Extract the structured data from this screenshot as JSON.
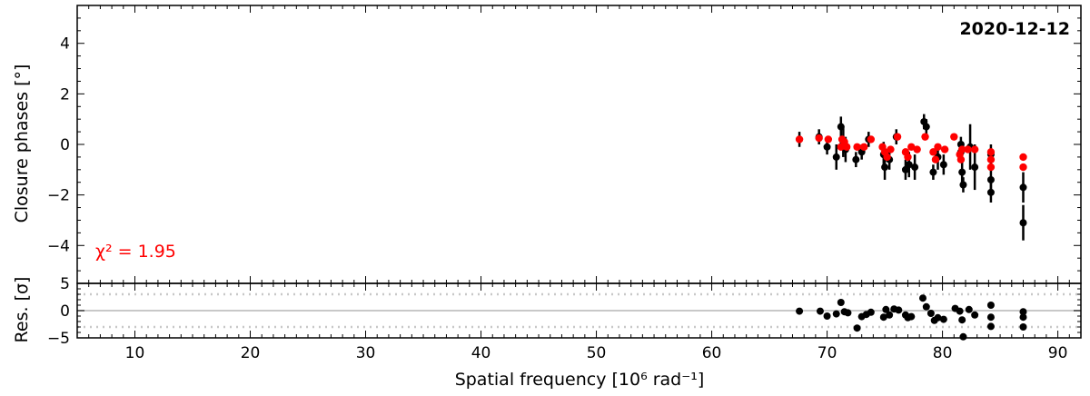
{
  "chart_data": [
    {
      "type": "scatter",
      "panel": "closure-phases",
      "date_label": "2020-12-12",
      "ylabel": "Closure phases [°]",
      "xlim": [
        5,
        92
      ],
      "ylim": [
        -5.5,
        5.5
      ],
      "yticks": [
        -4,
        -2,
        0,
        2,
        4
      ],
      "annotation": "χ² = 1.95",
      "observed": {
        "color": "#000000",
        "points": [
          [
            67.6,
            0.2,
            0.3
          ],
          [
            69.3,
            0.3,
            0.3
          ],
          [
            70.0,
            -0.1,
            0.3
          ],
          [
            70.8,
            -0.5,
            0.5
          ],
          [
            71.2,
            0.7,
            0.4
          ],
          [
            71.4,
            0.1,
            0.6
          ],
          [
            71.6,
            -0.2,
            0.5
          ],
          [
            72.5,
            -0.6,
            0.3
          ],
          [
            73.0,
            -0.3,
            0.3
          ],
          [
            73.6,
            0.2,
            0.3
          ],
          [
            74.9,
            -0.4,
            0.5
          ],
          [
            75.0,
            -0.9,
            0.5
          ],
          [
            75.4,
            -0.6,
            0.4
          ],
          [
            76.0,
            0.3,
            0.3
          ],
          [
            76.8,
            -1.0,
            0.4
          ],
          [
            77.1,
            -0.8,
            0.5
          ],
          [
            77.6,
            -0.9,
            0.5
          ],
          [
            78.4,
            0.9,
            0.3
          ],
          [
            78.6,
            0.7,
            0.3
          ],
          [
            79.2,
            -1.1,
            0.3
          ],
          [
            79.6,
            -0.5,
            0.5
          ],
          [
            80.1,
            -0.8,
            0.4
          ],
          [
            81.6,
            0.0,
            0.3
          ],
          [
            81.6,
            -0.3,
            0.4
          ],
          [
            81.7,
            -1.1,
            0.4
          ],
          [
            81.8,
            -1.6,
            0.3
          ],
          [
            82.4,
            -0.1,
            0.9
          ],
          [
            82.8,
            -0.9,
            0.9
          ],
          [
            84.2,
            -0.4,
            0.4
          ],
          [
            84.2,
            -1.4,
            0.4
          ],
          [
            84.2,
            -1.9,
            0.4
          ],
          [
            87.0,
            -1.7,
            0.6
          ],
          [
            87.0,
            -3.1,
            0.7
          ]
        ]
      },
      "model": {
        "color": "#ff0000",
        "points": [
          [
            67.6,
            0.2
          ],
          [
            69.3,
            0.25
          ],
          [
            70.1,
            0.2
          ],
          [
            71.2,
            -0.1
          ],
          [
            71.3,
            0.2
          ],
          [
            71.5,
            0.1
          ],
          [
            71.7,
            -0.1
          ],
          [
            72.6,
            -0.1
          ],
          [
            73.2,
            -0.1
          ],
          [
            73.8,
            0.2
          ],
          [
            74.8,
            -0.1
          ],
          [
            75.0,
            -0.3
          ],
          [
            75.2,
            -0.5
          ],
          [
            75.5,
            -0.2
          ],
          [
            76.1,
            0.3
          ],
          [
            76.8,
            -0.3
          ],
          [
            77.0,
            -0.5
          ],
          [
            77.3,
            -0.1
          ],
          [
            77.8,
            -0.2
          ],
          [
            78.5,
            0.3
          ],
          [
            79.2,
            -0.3
          ],
          [
            79.4,
            -0.6
          ],
          [
            79.6,
            -0.1
          ],
          [
            80.2,
            -0.2
          ],
          [
            81.0,
            0.3
          ],
          [
            81.5,
            -0.4
          ],
          [
            81.6,
            -0.6
          ],
          [
            81.7,
            -0.2
          ],
          [
            82.2,
            -0.2
          ],
          [
            82.8,
            -0.2
          ],
          [
            84.2,
            -0.3
          ],
          [
            84.2,
            -0.6
          ],
          [
            84.2,
            -0.9
          ],
          [
            87.0,
            -0.5
          ],
          [
            87.0,
            -0.9
          ]
        ]
      }
    },
    {
      "type": "scatter",
      "panel": "residuals",
      "xlabel": "Spatial frequency [10⁶ rad⁻¹]",
      "ylabel": "Res. [σ]",
      "xlim": [
        5,
        92
      ],
      "ylim": [
        -5,
        5
      ],
      "yticks": [
        -5,
        0,
        5
      ],
      "xticks": [
        10,
        20,
        30,
        40,
        50,
        60,
        70,
        80,
        90
      ],
      "reference_lines": {
        "solid": 0,
        "dotted": [
          -3,
          3
        ]
      },
      "points": [
        [
          67.6,
          -0.1
        ],
        [
          69.4,
          -0.1
        ],
        [
          70.0,
          -1.0
        ],
        [
          70.8,
          -0.6
        ],
        [
          71.2,
          1.5
        ],
        [
          71.5,
          -0.2
        ],
        [
          71.8,
          -0.4
        ],
        [
          72.6,
          -3.2
        ],
        [
          73.0,
          -1.1
        ],
        [
          73.4,
          -0.7
        ],
        [
          73.8,
          -0.3
        ],
        [
          74.9,
          -1.2
        ],
        [
          75.1,
          0.2
        ],
        [
          75.4,
          -0.8
        ],
        [
          75.8,
          0.3
        ],
        [
          76.2,
          0.1
        ],
        [
          76.8,
          -0.8
        ],
        [
          77.0,
          -1.3
        ],
        [
          77.3,
          -1.1
        ],
        [
          78.3,
          2.3
        ],
        [
          78.6,
          0.7
        ],
        [
          79.0,
          -0.5
        ],
        [
          79.3,
          -1.8
        ],
        [
          79.6,
          -1.3
        ],
        [
          80.1,
          -1.6
        ],
        [
          81.1,
          0.4
        ],
        [
          81.5,
          -0.1
        ],
        [
          81.7,
          -1.7
        ],
        [
          81.8,
          -4.8
        ],
        [
          82.3,
          0.2
        ],
        [
          82.8,
          -0.8
        ],
        [
          84.2,
          1.0
        ],
        [
          84.2,
          -1.2
        ],
        [
          84.2,
          -2.9
        ],
        [
          87.0,
          -0.2
        ],
        [
          87.0,
          -1.2
        ],
        [
          87.0,
          -3.0
        ]
      ]
    }
  ]
}
